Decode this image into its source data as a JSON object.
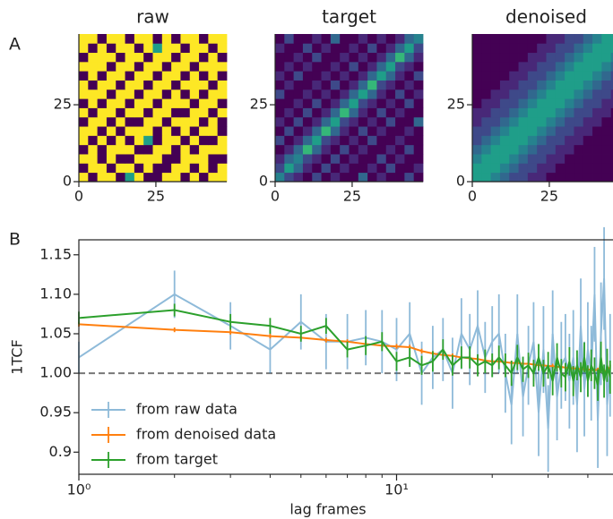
{
  "chart_data": [
    {
      "type": "heatmap",
      "title": "raw",
      "panel_label": "A",
      "colormap": "viridis",
      "vlim": [
        0,
        9
      ],
      "xlim": [
        0,
        48
      ],
      "ylim": [
        0,
        48
      ],
      "xticks": [
        0,
        25
      ],
      "yticks": [
        0,
        25
      ],
      "rows": [
        [
          9,
          0,
          9,
          9,
          0,
          5,
          9,
          0,
          0,
          9,
          9,
          0,
          9,
          0,
          9,
          9
        ],
        [
          0,
          9,
          9,
          0,
          9,
          9,
          0,
          9,
          0,
          0,
          9,
          9,
          0,
          9,
          0,
          9
        ],
        [
          9,
          9,
          0,
          9,
          0,
          0,
          9,
          9,
          9,
          0,
          0,
          9,
          9,
          9,
          0,
          0
        ],
        [
          0,
          9,
          0,
          9,
          9,
          9,
          0,
          0,
          9,
          9,
          0,
          9,
          0,
          9,
          9,
          9
        ],
        [
          9,
          0,
          9,
          0,
          9,
          0,
          9,
          5,
          0,
          9,
          9,
          0,
          9,
          0,
          0,
          9
        ],
        [
          9,
          9,
          0,
          9,
          0,
          9,
          9,
          9,
          0,
          9,
          0,
          9,
          0,
          9,
          9,
          0
        ],
        [
          0,
          9,
          9,
          0,
          9,
          0,
          0,
          9,
          9,
          0,
          9,
          9,
          9,
          0,
          9,
          0
        ],
        [
          9,
          0,
          9,
          9,
          0,
          9,
          9,
          0,
          9,
          9,
          0,
          0,
          9,
          9,
          0,
          9
        ],
        [
          0,
          9,
          0,
          9,
          9,
          0,
          9,
          9,
          0,
          9,
          9,
          9,
          0,
          9,
          9,
          0
        ],
        [
          9,
          9,
          9,
          0,
          9,
          9,
          0,
          9,
          9,
          0,
          9,
          0,
          9,
          0,
          9,
          9
        ],
        [
          9,
          0,
          9,
          9,
          0,
          9,
          9,
          0,
          9,
          9,
          0,
          9,
          9,
          9,
          0,
          9
        ],
        [
          0,
          9,
          0,
          9,
          9,
          0,
          9,
          9,
          0,
          9,
          9,
          0,
          9,
          0,
          9,
          0
        ],
        [
          9,
          9,
          9,
          0,
          9,
          9,
          0,
          9,
          9,
          0,
          9,
          9,
          0,
          9,
          9,
          9
        ],
        [
          0,
          9,
          9,
          9,
          0,
          9,
          9,
          0,
          9,
          9,
          0,
          9,
          9,
          0,
          9,
          0
        ],
        [
          9,
          0,
          9,
          0,
          9,
          9,
          0,
          9,
          5,
          9,
          9,
          0,
          9,
          9,
          0,
          9
        ],
        [
          9,
          9,
          0,
          9,
          9,
          0,
          9,
          9,
          0,
          9,
          0,
          9,
          9,
          0,
          9,
          9
        ]
      ]
    },
    {
      "type": "heatmap",
      "title": "target",
      "colormap": "viridis",
      "vlim": [
        0,
        9
      ],
      "xlim": [
        0,
        48
      ],
      "ylim": [
        0,
        48
      ],
      "xticks": [
        0,
        25
      ],
      "yticks": [
        0,
        25
      ],
      "rows": [
        [
          4,
          2,
          1,
          0,
          2,
          0,
          1,
          0,
          0,
          3,
          0,
          1,
          0,
          0,
          2,
          0
        ],
        [
          2,
          5,
          3,
          1,
          0,
          2,
          0,
          1,
          0,
          0,
          1,
          0,
          2,
          0,
          0,
          1
        ],
        [
          1,
          3,
          4,
          2,
          1,
          0,
          2,
          0,
          1,
          0,
          0,
          2,
          0,
          1,
          0,
          0
        ],
        [
          0,
          1,
          3,
          6,
          3,
          1,
          0,
          2,
          0,
          1,
          0,
          0,
          1,
          0,
          2,
          0
        ],
        [
          2,
          0,
          1,
          3,
          5,
          2,
          1,
          0,
          1,
          0,
          2,
          0,
          0,
          1,
          0,
          0
        ],
        [
          0,
          2,
          0,
          1,
          3,
          6,
          3,
          1,
          0,
          2,
          0,
          1,
          0,
          0,
          1,
          0
        ],
        [
          1,
          0,
          2,
          0,
          1,
          3,
          5,
          2,
          1,
          0,
          1,
          0,
          2,
          0,
          0,
          3
        ],
        [
          0,
          1,
          0,
          2,
          0,
          1,
          3,
          6,
          3,
          1,
          0,
          2,
          0,
          1,
          0,
          0
        ],
        [
          0,
          0,
          1,
          0,
          2,
          0,
          1,
          3,
          5,
          2,
          1,
          0,
          1,
          0,
          2,
          0
        ],
        [
          2,
          0,
          0,
          1,
          0,
          1,
          0,
          1,
          3,
          5,
          3,
          1,
          0,
          2,
          0,
          1
        ],
        [
          0,
          1,
          0,
          0,
          1,
          0,
          2,
          0,
          1,
          3,
          6,
          2,
          1,
          0,
          1,
          0
        ],
        [
          1,
          0,
          2,
          0,
          0,
          1,
          0,
          1,
          0,
          1,
          3,
          5,
          3,
          1,
          0,
          2
        ],
        [
          0,
          1,
          0,
          1,
          0,
          0,
          1,
          0,
          2,
          0,
          1,
          3,
          5,
          2,
          1,
          0
        ],
        [
          0,
          0,
          1,
          0,
          2,
          0,
          0,
          1,
          0,
          1,
          0,
          1,
          3,
          6,
          3,
          1
        ],
        [
          1,
          0,
          0,
          2,
          0,
          1,
          0,
          0,
          1,
          0,
          2,
          0,
          1,
          3,
          5,
          2
        ],
        [
          0,
          2,
          0,
          0,
          1,
          0,
          3,
          0,
          0,
          1,
          0,
          1,
          0,
          1,
          3,
          4
        ]
      ]
    },
    {
      "type": "heatmap",
      "title": "denoised",
      "colormap": "viridis",
      "vlim": [
        0,
        9
      ],
      "xlim": [
        0,
        48
      ],
      "ylim": [
        0,
        48
      ],
      "xticks": [
        0,
        25
      ],
      "yticks": [
        0,
        25
      ],
      "rows": [
        [
          5,
          5,
          4,
          3,
          2,
          2,
          1,
          1,
          0,
          0,
          0,
          0,
          0,
          0,
          0,
          0
        ],
        [
          5,
          5,
          5,
          4,
          3,
          2,
          2,
          1,
          1,
          0,
          0,
          0,
          0,
          0,
          0,
          0
        ],
        [
          4,
          5,
          5,
          5,
          4,
          3,
          2,
          2,
          1,
          1,
          0,
          0,
          0,
          0,
          0,
          0
        ],
        [
          3,
          4,
          5,
          5,
          5,
          4,
          3,
          2,
          2,
          1,
          1,
          0,
          0,
          0,
          0,
          0
        ],
        [
          2,
          3,
          4,
          5,
          5,
          5,
          4,
          3,
          2,
          2,
          1,
          1,
          0,
          0,
          0,
          0
        ],
        [
          2,
          2,
          3,
          4,
          5,
          5,
          5,
          4,
          3,
          2,
          2,
          1,
          1,
          0,
          0,
          0
        ],
        [
          1,
          2,
          2,
          3,
          4,
          5,
          5,
          5,
          4,
          3,
          2,
          2,
          1,
          1,
          0,
          0
        ],
        [
          1,
          1,
          2,
          2,
          3,
          4,
          5,
          5,
          5,
          4,
          3,
          2,
          2,
          1,
          1,
          0
        ],
        [
          0,
          1,
          1,
          2,
          2,
          3,
          4,
          5,
          5,
          5,
          4,
          3,
          2,
          2,
          1,
          1
        ],
        [
          0,
          0,
          1,
          1,
          2,
          2,
          3,
          4,
          5,
          5,
          5,
          4,
          3,
          2,
          2,
          1
        ],
        [
          0,
          0,
          0,
          1,
          1,
          2,
          2,
          3,
          4,
          5,
          5,
          5,
          4,
          3,
          2,
          2
        ],
        [
          0,
          0,
          0,
          0,
          1,
          1,
          2,
          2,
          3,
          4,
          5,
          5,
          5,
          4,
          3,
          2
        ],
        [
          0,
          0,
          0,
          0,
          0,
          1,
          1,
          2,
          2,
          3,
          4,
          5,
          5,
          5,
          4,
          3
        ],
        [
          0,
          0,
          0,
          0,
          0,
          0,
          1,
          1,
          2,
          2,
          3,
          4,
          5,
          5,
          5,
          4
        ],
        [
          0,
          0,
          0,
          0,
          0,
          0,
          0,
          1,
          1,
          2,
          2,
          3,
          4,
          5,
          5,
          5
        ],
        [
          0,
          0,
          0,
          0,
          0,
          0,
          0,
          0,
          1,
          1,
          2,
          2,
          3,
          4,
          5,
          5
        ]
      ]
    },
    {
      "type": "line",
      "panel_label": "B",
      "x_label": "lag frames",
      "y_label": "1TCF",
      "xscale": "log",
      "xlim": [
        1,
        48
      ],
      "ylim": [
        0.872,
        1.169
      ],
      "xticks": [
        {
          "value": 1,
          "label": "10⁰"
        },
        {
          "value": 10,
          "label": "10¹"
        }
      ],
      "xminorticks": [
        2,
        3,
        4,
        5,
        6,
        7,
        8,
        9,
        20,
        30,
        40
      ],
      "yticks": [
        0.9,
        0.95,
        {
          "value": 1.0,
          "label": "1.00"
        },
        1.05,
        {
          "value": 1.1,
          "label": "1.10"
        },
        1.15
      ],
      "hline": 1.0,
      "legend": "lower left",
      "x": [
        1,
        2,
        3,
        4,
        5,
        6,
        7,
        8,
        9,
        10,
        11,
        12,
        13,
        14,
        15,
        16,
        17,
        18,
        19,
        20,
        21,
        22,
        23,
        24,
        25,
        26,
        27,
        28,
        29,
        30,
        31,
        32,
        33,
        34,
        35,
        36,
        37,
        38,
        39,
        40,
        41,
        42,
        43,
        44,
        45,
        46,
        47
      ],
      "series": [
        {
          "name": "from raw data",
          "color": "#1f77b4",
          "opacity": 0.5,
          "values": [
            1.02,
            1.1,
            1.06,
            1.03,
            1.065,
            1.04,
            1.04,
            1.045,
            1.04,
            1.03,
            1.05,
            1.0,
            1.02,
            1.03,
            1.0,
            1.05,
            1.03,
            1.06,
            1.02,
            1.04,
            1.05,
            1.0,
            0.96,
            1.05,
            0.97,
            1.01,
            1.04,
            0.95,
            1.03,
            0.93,
            1.05,
            0.97,
            1.01,
            1.02,
            0.99,
            1.02,
            0.96,
            1.06,
            0.98,
            1.03,
            1.0,
            1.1,
            0.94,
            1.05,
            1.12,
            0.96,
            1.01
          ],
          "errors": [
            0.02,
            0.03,
            0.03,
            0.03,
            0.035,
            0.035,
            0.035,
            0.035,
            0.04,
            0.04,
            0.04,
            0.04,
            0.04,
            0.04,
            0.045,
            0.045,
            0.045,
            0.045,
            0.045,
            0.045,
            0.05,
            0.05,
            0.05,
            0.05,
            0.05,
            0.05,
            0.05,
            0.055,
            0.055,
            0.055,
            0.055,
            0.055,
            0.055,
            0.055,
            0.06,
            0.06,
            0.06,
            0.06,
            0.06,
            0.06,
            0.06,
            0.06,
            0.06,
            0.065,
            0.065,
            0.065,
            0.065
          ]
        },
        {
          "name": "from denoised data",
          "color": "#ff7f0e",
          "opacity": 1,
          "values": [
            1.062,
            1.055,
            1.052,
            1.047,
            1.045,
            1.042,
            1.04,
            1.037,
            1.035,
            1.034,
            1.033,
            1.028,
            1.025,
            1.023,
            1.022,
            1.02,
            1.019,
            1.018,
            1.016,
            1.015,
            1.015,
            1.014,
            1.013,
            1.013,
            1.012,
            1.012,
            1.011,
            1.01,
            1.01,
            1.009,
            1.009,
            1.008,
            1.008,
            1.007,
            1.007,
            1.006,
            1.006,
            1.005,
            1.005,
            1.005,
            1.004,
            1.004,
            1.004,
            1.003,
            1.003,
            1.003,
            1.008
          ],
          "errors": [
            0.003,
            0.003,
            0.003,
            0.003,
            0.003,
            0.003,
            0.003,
            0.003,
            0.003,
            0.003,
            0.003,
            0.003,
            0.003,
            0.003,
            0.003,
            0.003,
            0.003,
            0.003,
            0.003,
            0.003,
            0.003,
            0.003,
            0.003,
            0.003,
            0.003,
            0.003,
            0.003,
            0.003,
            0.003,
            0.003,
            0.003,
            0.003,
            0.003,
            0.003,
            0.003,
            0.003,
            0.003,
            0.003,
            0.003,
            0.003,
            0.003,
            0.003,
            0.003,
            0.003,
            0.003,
            0.003,
            0.003
          ]
        },
        {
          "name": "from target",
          "color": "#2ca02c",
          "opacity": 1,
          "values": [
            1.07,
            1.08,
            1.065,
            1.06,
            1.05,
            1.06,
            1.03,
            1.035,
            1.04,
            1.015,
            1.02,
            1.01,
            1.015,
            1.03,
            1.01,
            1.02,
            1.02,
            1.01,
            1.015,
            1.01,
            1.02,
            1.01,
            1.0,
            1.02,
            1.005,
            1.01,
            1.0,
            1.02,
            1.0,
            1.01,
            0.99,
            1.02,
            1.0,
            0.995,
            1.015,
            0.99,
            1.01,
            0.995,
            1.02,
            0.99,
            1.01,
            1.0,
            0.985,
            1.02,
            0.99,
            1.01,
            0.995
          ],
          "errors": [
            0.008,
            0.008,
            0.01,
            0.01,
            0.01,
            0.01,
            0.01,
            0.012,
            0.012,
            0.012,
            0.012,
            0.012,
            0.013,
            0.013,
            0.013,
            0.014,
            0.014,
            0.014,
            0.015,
            0.015,
            0.015,
            0.015,
            0.016,
            0.016,
            0.016,
            0.016,
            0.017,
            0.017,
            0.017,
            0.017,
            0.018,
            0.018,
            0.018,
            0.018,
            0.018,
            0.019,
            0.019,
            0.019,
            0.019,
            0.02,
            0.02,
            0.02,
            0.02,
            0.02,
            0.021,
            0.021,
            0.021
          ]
        }
      ]
    }
  ]
}
